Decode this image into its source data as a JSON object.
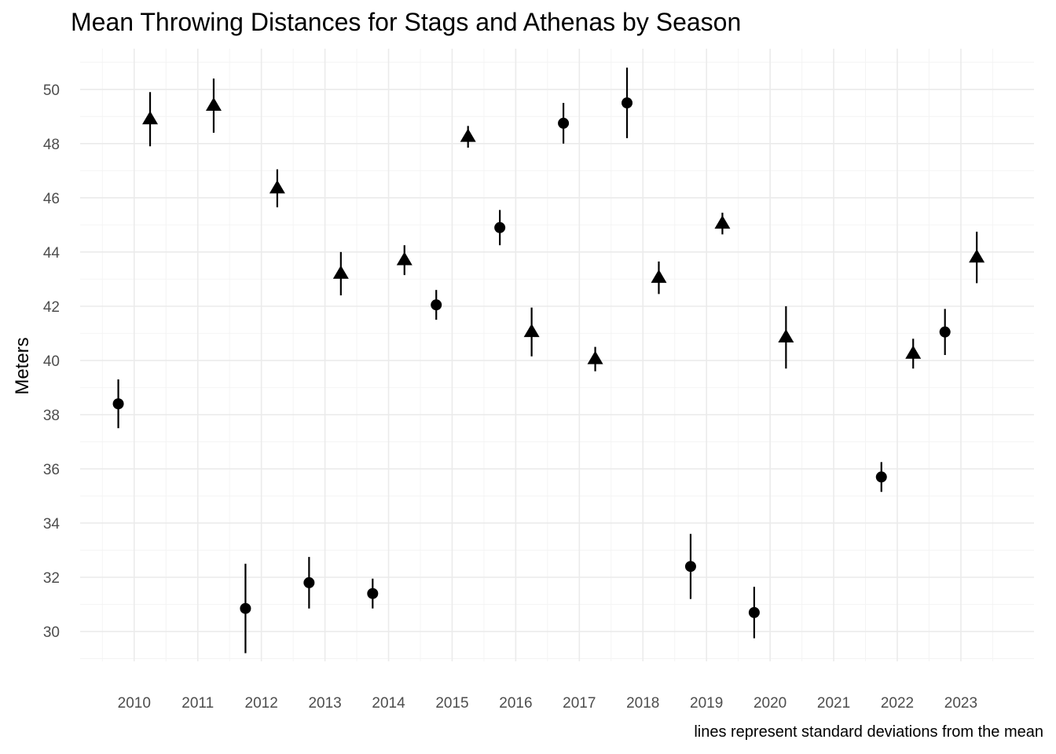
{
  "chart_data": {
    "type": "scatter",
    "title": "Mean Throwing Distances for Stags and Athenas by Season",
    "xlabel": "",
    "ylabel": "Meters",
    "caption": "lines represent standard deviations from the mean",
    "x_ticks": [
      "2010",
      "2011",
      "2012",
      "2013",
      "2014",
      "2015",
      "2016",
      "2017",
      "2018",
      "2019",
      "2020",
      "2021",
      "2022",
      "2023"
    ],
    "y_ticks": [
      30,
      32,
      34,
      36,
      38,
      40,
      42,
      44,
      46,
      48,
      50
    ],
    "ylim": [
      28.9,
      51.5
    ],
    "grid": true,
    "legend": "none",
    "series": [
      {
        "marker": "circle",
        "points": [
          {
            "x": 2009.75,
            "mean": 38.4,
            "sd": 0.9
          },
          {
            "x": 2011.75,
            "mean": 30.85,
            "sd": 1.65
          },
          {
            "x": 2012.75,
            "mean": 31.8,
            "sd": 0.95
          },
          {
            "x": 2013.75,
            "mean": 31.4,
            "sd": 0.55
          },
          {
            "x": 2014.75,
            "mean": 42.05,
            "sd": 0.55
          },
          {
            "x": 2015.75,
            "mean": 44.9,
            "sd": 0.65
          },
          {
            "x": 2016.75,
            "mean": 48.75,
            "sd": 0.75
          },
          {
            "x": 2017.75,
            "mean": 49.5,
            "sd": 1.3
          },
          {
            "x": 2018.75,
            "mean": 32.4,
            "sd": 1.2
          },
          {
            "x": 2019.75,
            "mean": 30.7,
            "sd": 0.95
          },
          {
            "x": 2021.75,
            "mean": 35.7,
            "sd": 0.55
          },
          {
            "x": 2022.75,
            "mean": 41.05,
            "sd": 0.85
          }
        ]
      },
      {
        "marker": "triangle",
        "points": [
          {
            "x": 2010.25,
            "mean": 48.9,
            "sd": 1.0
          },
          {
            "x": 2011.25,
            "mean": 49.4,
            "sd": 1.0
          },
          {
            "x": 2012.25,
            "mean": 46.35,
            "sd": 0.7
          },
          {
            "x": 2013.25,
            "mean": 43.2,
            "sd": 0.8
          },
          {
            "x": 2014.25,
            "mean": 43.7,
            "sd": 0.55
          },
          {
            "x": 2015.25,
            "mean": 48.25,
            "sd": 0.4
          },
          {
            "x": 2016.25,
            "mean": 41.05,
            "sd": 0.9
          },
          {
            "x": 2017.25,
            "mean": 40.05,
            "sd": 0.45
          },
          {
            "x": 2018.25,
            "mean": 43.05,
            "sd": 0.6
          },
          {
            "x": 2019.25,
            "mean": 45.05,
            "sd": 0.4
          },
          {
            "x": 2020.25,
            "mean": 40.85,
            "sd": 1.15
          },
          {
            "x": 2022.25,
            "mean": 40.25,
            "sd": 0.55
          },
          {
            "x": 2023.25,
            "mean": 43.8,
            "sd": 0.95
          }
        ]
      }
    ],
    "colors": {
      "marks": "#000000",
      "grid_major": "#ebebeb",
      "grid_minor": "#f4f4f4",
      "tick_text": "#4d4d4d"
    }
  }
}
